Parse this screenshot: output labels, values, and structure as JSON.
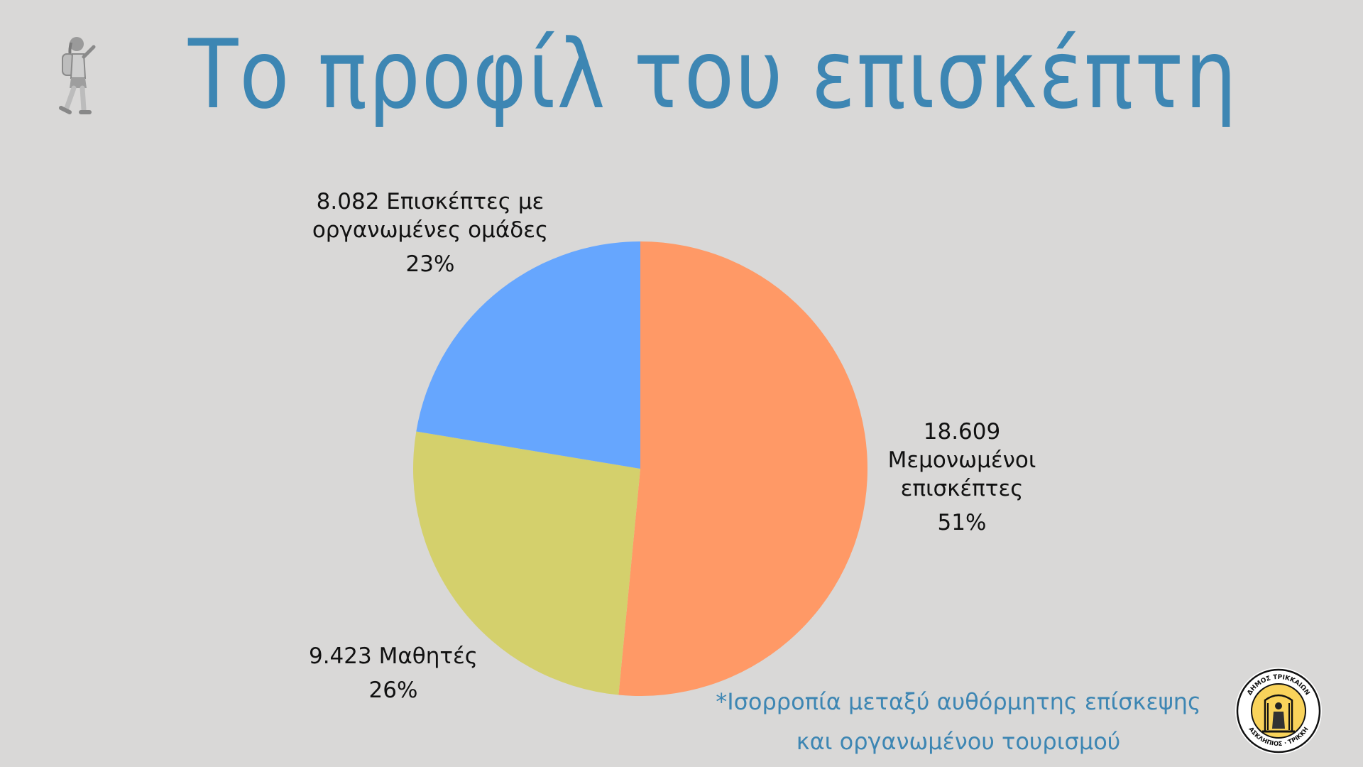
{
  "title": "Το προφίλ του επισκέπτη",
  "note_lines": [
    "*Ισορροπία μεταξύ αυθόρμητης επίσκεψης",
    "και οργανωμένου τουρισμού"
  ],
  "seal": {
    "top_text": "ΔΗΜΟΣ ΤΡΙΚΚΑΙΩΝ",
    "bottom_text": "ΑΣΚΛΗΠΙΟΣ · ΤΡΙΚΚΗ"
  },
  "chart_data": {
    "type": "pie",
    "title": "",
    "slices": [
      {
        "label": "18.609 Μεμονωμένοι επισκέπτες",
        "label_lines": [
          "18.609",
          "Μεμονωμένοι",
          "επισκέπτες"
        ],
        "value": 18609,
        "percent_label": "51%",
        "color": "#ff9966"
      },
      {
        "label": "9.423 Μαθητές",
        "label_lines": [
          "9.423 Μαθητές"
        ],
        "value": 9423,
        "percent_label": "26%",
        "color": "#d4d06c"
      },
      {
        "label": "8.082 Επισκέπτες με οργανωμένες ομάδες",
        "label_lines": [
          "8.082 Επισκέπτες με",
          "οργανωμένες ομάδες"
        ],
        "value": 8082,
        "percent_label": "23%",
        "color": "#66a6fe"
      }
    ],
    "start_angle": "12 o'clock",
    "direction": "clockwise"
  }
}
